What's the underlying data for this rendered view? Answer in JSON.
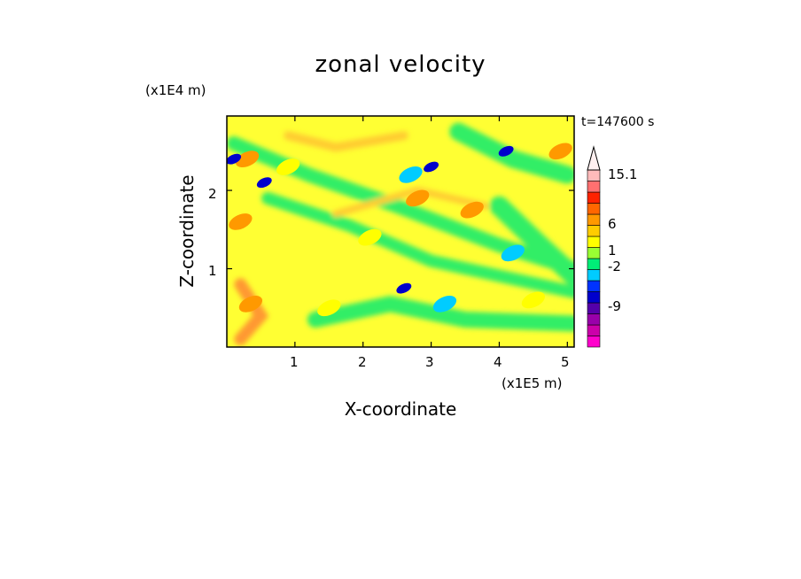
{
  "chart_data": {
    "type": "heatmap",
    "title": "zonal velocity",
    "xlabel": "X-coordinate",
    "ylabel": "Z-coordinate",
    "x_unit": "(x1E5 m)",
    "y_unit": "(x1E4 m)",
    "time_label": "t=147600 s",
    "xlim": [
      0,
      5.1
    ],
    "ylim": [
      0,
      2.95
    ],
    "x_ticks": [
      "1",
      "2",
      "3",
      "4",
      "5"
    ],
    "y_ticks": [
      "1",
      "2"
    ],
    "colorbar": {
      "labels": [
        "15.1",
        "6",
        "1",
        "-2",
        "-9"
      ],
      "colors": [
        "#ff00cc",
        "#cc00aa",
        "#9900aa",
        "#5500aa",
        "#0000cc",
        "#0033ff",
        "#00ccff",
        "#00ee77",
        "#99ff33",
        "#ffff00",
        "#ffcc00",
        "#ff9900",
        "#ff6600",
        "#ff2200",
        "#ff7070",
        "#ffbbbb"
      ]
    },
    "features": [
      {
        "x": 0.2,
        "z": 1.6,
        "value": 6
      },
      {
        "x": 0.55,
        "z": 2.1,
        "value": -9
      },
      {
        "x": 0.9,
        "z": 2.3,
        "value": 1
      },
      {
        "x": 0.3,
        "z": 2.4,
        "value": 6
      },
      {
        "x": 0.1,
        "z": 2.4,
        "value": -9
      },
      {
        "x": 3.0,
        "z": 2.3,
        "value": -9
      },
      {
        "x": 2.7,
        "z": 2.2,
        "value": -2
      },
      {
        "x": 4.1,
        "z": 2.5,
        "value": -9
      },
      {
        "x": 2.6,
        "z": 0.75,
        "value": -9
      },
      {
        "x": 3.2,
        "z": 0.55,
        "value": -2
      },
      {
        "x": 2.8,
        "z": 1.9,
        "value": 6
      },
      {
        "x": 3.6,
        "z": 1.75,
        "value": 6
      },
      {
        "x": 0.35,
        "z": 0.55,
        "value": 6
      },
      {
        "x": 4.9,
        "z": 2.5,
        "value": 6
      },
      {
        "x": 4.5,
        "z": 0.6,
        "value": 1
      },
      {
        "x": 2.1,
        "z": 1.4,
        "value": 1
      },
      {
        "x": 1.5,
        "z": 0.5,
        "value": 1
      },
      {
        "x": 4.2,
        "z": 1.2,
        "value": -2
      }
    ]
  }
}
